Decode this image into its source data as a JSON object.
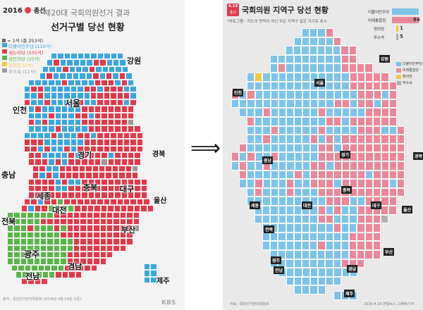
{
  "left_panel": {
    "logo_year": "2016",
    "logo_text": "총선",
    "title_line1": "제20대 국회의원선거 결과",
    "title_line2": "선거구별 당선 현황",
    "scale_note": "= 1석 (총 253석)",
    "legend": [
      {
        "label": "더불어민주당 (110석)",
        "color": "#3aa6e0"
      },
      {
        "label": "새누리당 (105석)",
        "color": "#e03a4a"
      },
      {
        "label": "국민의당 (25석)",
        "color": "#5ab54a"
      },
      {
        "label": "정의당 (2석)",
        "color": "#f2c744"
      },
      {
        "label": "무소속 (11석)",
        "color": "#9a9a9a"
      }
    ],
    "regions": [
      "강원",
      "서울",
      "인천",
      "경기",
      "경북",
      "충남",
      "세종",
      "충북",
      "대구",
      "울산",
      "대전",
      "전북",
      "부산",
      "광주",
      "경남",
      "전남",
      "제주"
    ],
    "source": "출처 : 중앙선거관리위원회 (2016년 4월 14일 기준)",
    "credit": "KBS"
  },
  "arrow_symbol": "⟹",
  "right_panel": {
    "badge_top": "4.15",
    "badge_bottom": "총선",
    "title": "국회의원 지역구 당선 현황",
    "subtitle": "*카토그램 : 지도의 면적이 아닌 모든 지역구 같은 크기로 표시",
    "seat_legend": [
      {
        "label": "더불어민주당",
        "seats": "",
        "color": "#7ec3ea"
      },
      {
        "label": "미래통합당",
        "seats": "84",
        "color": "#e8889a"
      },
      {
        "label": "정의당",
        "seats": "1",
        "color": "#f2c744"
      },
      {
        "label": "무소속",
        "seats": "5",
        "color": "#b0b0b0"
      }
    ],
    "side_legend": [
      {
        "label": "더불어민주당",
        "color": "#7ec3ea"
      },
      {
        "label": "미래통합당",
        "color": "#e8889a"
      },
      {
        "label": "정의당",
        "color": "#f2c744"
      },
      {
        "label": "무소속",
        "color": "#b0b0b0"
      }
    ],
    "regions": [
      "강원",
      "서울",
      "인천",
      "경기",
      "충북",
      "대전",
      "충남",
      "세종",
      "전북",
      "경북",
      "대구",
      "울산",
      "광주",
      "전남",
      "부산",
      "경남",
      "제주"
    ],
    "source": "자료 : 중앙선거관리위원회",
    "credit": "2020.4.16 연합뉴스 그래픽/기자"
  }
}
